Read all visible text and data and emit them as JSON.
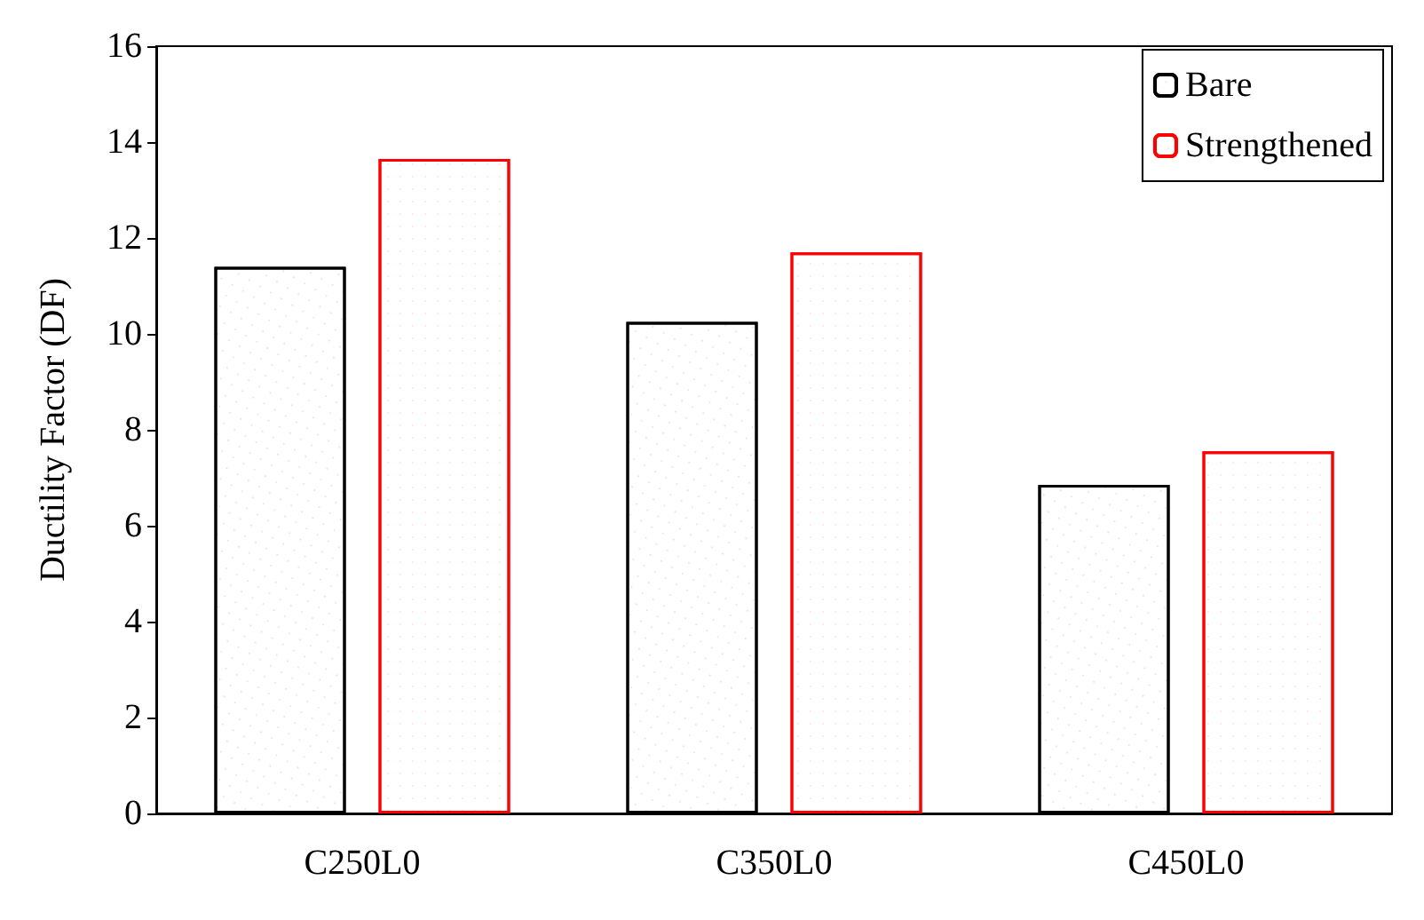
{
  "chart_data": {
    "type": "bar",
    "ylabel": "Ductility Factor (DF)",
    "categories": [
      "C250L0",
      "C350L0",
      "C450L0"
    ],
    "series": [
      {
        "name": "Bare",
        "color": "#000000",
        "values": [
          11.4,
          10.25,
          6.85
        ]
      },
      {
        "name": "Strengthened",
        "color": "#ff0000",
        "values": [
          13.65,
          11.7,
          7.55
        ]
      }
    ],
    "ylim": [
      0,
      16
    ],
    "yticks": [
      0,
      2,
      4,
      6,
      8,
      10,
      12,
      14,
      16
    ],
    "grid": false,
    "legend": "top right"
  }
}
